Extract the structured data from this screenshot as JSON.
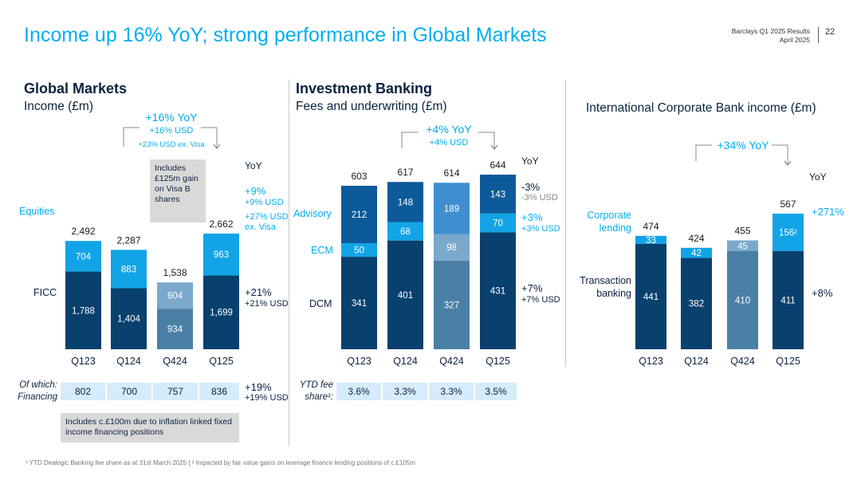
{
  "title": "Income up 16% YoY; strong performance in Global Markets",
  "meta": {
    "line1": "Barclays Q1 2025 Results",
    "line2": "April 2025",
    "page": "22"
  },
  "colors": {
    "accent": "#00aeef",
    "navy": "#0a2240",
    "bar_dark": "#08406e",
    "bar_mid": "#0d5a9a",
    "bar_light": "#12a4e6",
    "bar_grey": "#4a7fa6",
    "bar_grey_light": "#7aa9cc",
    "callout": "#d9d9d9",
    "fin_bg": "#d6ecfa"
  },
  "gm": {
    "heading": "Global Markets",
    "subheading": "Income (£m)",
    "yoy_headline": "+16% YoY",
    "yoy_usd": "+16% USD",
    "yoy_usd_ex": "+23% USD ex. Visa",
    "yoy_label": "YoY",
    "row_equities": "Equities",
    "row_ficc": "FICC",
    "callout": "Includes £125m gain on Visa B shares",
    "eq_yoy": "+9%",
    "eq_yoy_usd": "+9% USD",
    "eq_yoy_usd_ex": "+27% USD ex. Visa",
    "ficc_yoy": "+21%",
    "ficc_yoy_usd": "+21% USD",
    "fin_label": "Of which: Financing",
    "fin_values": [
      "802",
      "700",
      "757",
      "836"
    ],
    "fin_yoy": "+19%",
    "fin_yoy_usd": "+19% USD",
    "fin_callout": "Includes c.£100m due to inflation linked fixed income financing positions"
  },
  "ib": {
    "heading": "Investment Banking",
    "subheading": "Fees and underwriting (£m)",
    "yoy_headline": "+4% YoY",
    "yoy_usd": "+4% USD",
    "yoy_label": "YoY",
    "row_advisory": "Advisory",
    "row_ecm": "ECM",
    "row_dcm": "DCM",
    "adv_yoy": "-3%",
    "adv_yoy_usd": "-3% USD",
    "ecm_yoy": "+3%",
    "ecm_yoy_usd": "+3% USD",
    "dcm_yoy": "+7%",
    "dcm_yoy_usd": "+7% USD",
    "share_label": "YTD fee share¹:",
    "share_values": [
      "3.6%",
      "3.3%",
      "3.3%",
      "3.5%"
    ]
  },
  "icb": {
    "heading": "International Corporate Bank income (£m)",
    "yoy_headline": "+34% YoY",
    "yoy_label": "YoY",
    "row_corporate": "Corporate lending",
    "row_transaction": "Transaction banking",
    "corp_yoy": "+271%",
    "trans_yoy": "+8%"
  },
  "footnote": "¹ YTD Dealogic Banking fee share as at 31st March 2025 | ² Impacted by fair value gains on leverage finance lending positions of c.£105m",
  "chart_data": [
    {
      "type": "bar",
      "stacked": true,
      "title": "Global Markets Income (£m)",
      "categories": [
        "Q123",
        "Q124",
        "Q424",
        "Q125"
      ],
      "series": [
        {
          "name": "FICC",
          "values": [
            1788,
            1404,
            934,
            1699
          ]
        },
        {
          "name": "Equities",
          "values": [
            704,
            883,
            604,
            963
          ]
        }
      ],
      "totals": [
        2492,
        2287,
        1538,
        2662
      ],
      "value_labels": {
        "FICC": [
          "1,788",
          "1,404",
          "934",
          "1,699"
        ],
        "Equities": [
          "704",
          "883",
          "604",
          "963"
        ],
        "totals": [
          "2,492",
          "2,287",
          "1,538",
          "2,662"
        ]
      }
    },
    {
      "type": "bar",
      "stacked": true,
      "title": "Investment Banking Fees and underwriting (£m)",
      "categories": [
        "Q123",
        "Q124",
        "Q424",
        "Q125"
      ],
      "series": [
        {
          "name": "DCM",
          "values": [
            341,
            401,
            327,
            431
          ]
        },
        {
          "name": "ECM",
          "values": [
            50,
            68,
            98,
            70
          ]
        },
        {
          "name": "Advisory",
          "values": [
            212,
            148,
            189,
            143
          ]
        }
      ],
      "totals": [
        603,
        617,
        614,
        644
      ],
      "value_labels": {
        "DCM": [
          "341",
          "401",
          "327",
          "431"
        ],
        "ECM": [
          "50",
          "68",
          "98",
          "70"
        ],
        "Advisory": [
          "212",
          "148",
          "189",
          "143"
        ],
        "totals": [
          "603",
          "617",
          "614",
          "644"
        ]
      }
    },
    {
      "type": "bar",
      "stacked": true,
      "title": "International Corporate Bank income (£m)",
      "categories": [
        "Q123",
        "Q124",
        "Q424",
        "Q125"
      ],
      "series": [
        {
          "name": "Transaction banking",
          "values": [
            441,
            382,
            410,
            411
          ]
        },
        {
          "name": "Corporate lending",
          "values": [
            33,
            42,
            45,
            156
          ]
        }
      ],
      "totals": [
        474,
        424,
        455,
        567
      ],
      "value_labels": {
        "Transaction banking": [
          "441",
          "382",
          "410",
          "411"
        ],
        "Corporate lending": [
          "33",
          "42",
          "45",
          "156²"
        ],
        "totals": [
          "474",
          "424",
          "455",
          "567"
        ]
      }
    }
  ]
}
